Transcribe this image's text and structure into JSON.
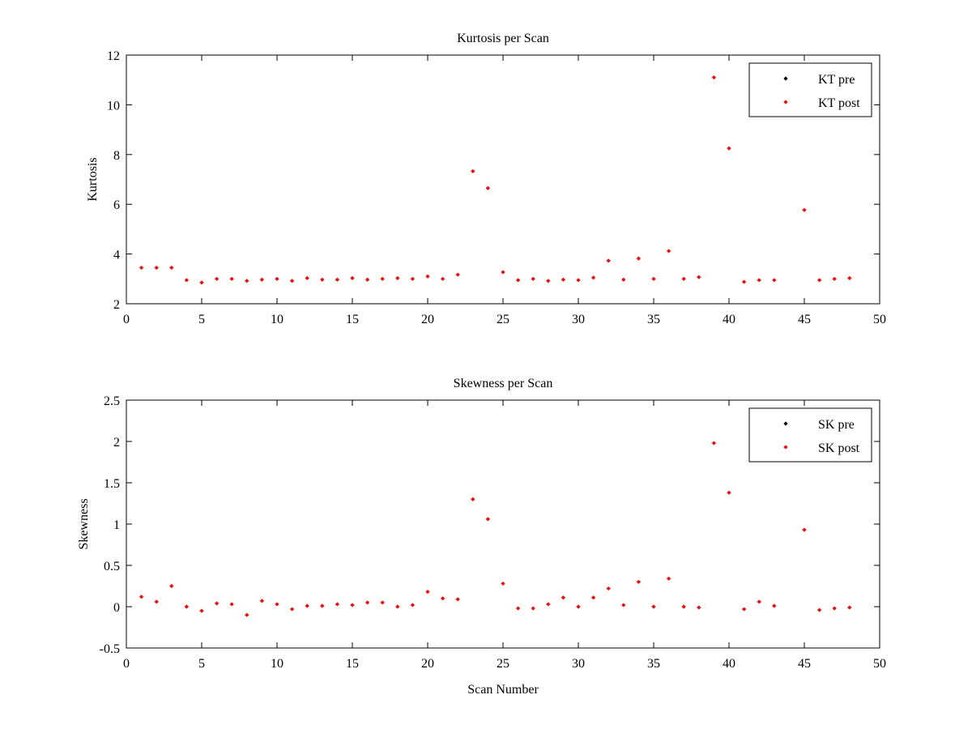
{
  "chart_data": [
    {
      "type": "scatter",
      "title": "Kurtosis per Scan",
      "xlabel": "",
      "ylabel": "Kurtosis",
      "xlim": [
        0,
        50
      ],
      "ylim": [
        2,
        12
      ],
      "xticks": [
        0,
        5,
        10,
        15,
        20,
        25,
        30,
        35,
        40,
        45,
        50
      ],
      "yticks": [
        2,
        4,
        6,
        8,
        10,
        12
      ],
      "grid": false,
      "legend_position": "top-right",
      "legend": [
        {
          "label": "KT pre",
          "color": "#000000"
        },
        {
          "label": "KT post",
          "color": "#ff0000"
        }
      ],
      "x": [
        1,
        2,
        3,
        4,
        5,
        6,
        7,
        8,
        9,
        10,
        11,
        12,
        13,
        14,
        15,
        16,
        17,
        18,
        19,
        20,
        21,
        22,
        23,
        24,
        25,
        26,
        27,
        28,
        29,
        30,
        31,
        32,
        33,
        34,
        35,
        36,
        37,
        38,
        39,
        40,
        41,
        42,
        43,
        44,
        45,
        46,
        47,
        48
      ],
      "series": [
        {
          "name": "KT post",
          "color": "#ff0000",
          "values": [
            3.45,
            3.45,
            3.45,
            2.95,
            2.85,
            3.0,
            3.0,
            2.92,
            2.97,
            3.0,
            2.92,
            3.03,
            2.97,
            2.97,
            3.03,
            2.97,
            3.0,
            3.03,
            3.0,
            3.1,
            3.0,
            3.17,
            7.33,
            6.65,
            3.27,
            2.95,
            3.0,
            2.92,
            2.97,
            2.95,
            3.05,
            3.73,
            2.97,
            3.82,
            3.0,
            4.12,
            3.0,
            3.07,
            11.1,
            8.25,
            2.88,
            2.95,
            2.95,
            null,
            5.77,
            2.95,
            3.0,
            3.03
          ]
        }
      ]
    },
    {
      "type": "scatter",
      "title": "Skewness per Scan",
      "xlabel": "Scan Number",
      "ylabel": "Skewness",
      "xlim": [
        0,
        50
      ],
      "ylim": [
        -0.5,
        2.5
      ],
      "xticks": [
        0,
        5,
        10,
        15,
        20,
        25,
        30,
        35,
        40,
        45,
        50
      ],
      "yticks": [
        -0.5,
        0,
        0.5,
        1,
        1.5,
        2,
        2.5
      ],
      "grid": false,
      "legend_position": "top-right",
      "legend": [
        {
          "label": "SK pre",
          "color": "#000000"
        },
        {
          "label": "SK post",
          "color": "#ff0000"
        }
      ],
      "x": [
        1,
        2,
        3,
        4,
        5,
        6,
        7,
        8,
        9,
        10,
        11,
        12,
        13,
        14,
        15,
        16,
        17,
        18,
        19,
        20,
        21,
        22,
        23,
        24,
        25,
        26,
        27,
        28,
        29,
        30,
        31,
        32,
        33,
        34,
        35,
        36,
        37,
        38,
        39,
        40,
        41,
        42,
        43,
        44,
        45,
        46,
        47,
        48
      ],
      "series": [
        {
          "name": "SK post",
          "color": "#ff0000",
          "values": [
            0.12,
            0.06,
            0.25,
            0.0,
            -0.05,
            0.04,
            0.03,
            -0.1,
            0.07,
            0.03,
            -0.03,
            0.01,
            0.01,
            0.03,
            0.02,
            0.05,
            0.05,
            0.0,
            0.02,
            0.18,
            0.1,
            0.09,
            1.3,
            1.06,
            0.28,
            -0.02,
            -0.02,
            0.03,
            0.11,
            0.0,
            0.11,
            0.22,
            0.02,
            0.3,
            0.0,
            0.34,
            0.0,
            -0.01,
            1.98,
            1.38,
            -0.03,
            0.06,
            0.01,
            null,
            0.93,
            -0.04,
            -0.02,
            -0.01
          ]
        }
      ]
    }
  ]
}
